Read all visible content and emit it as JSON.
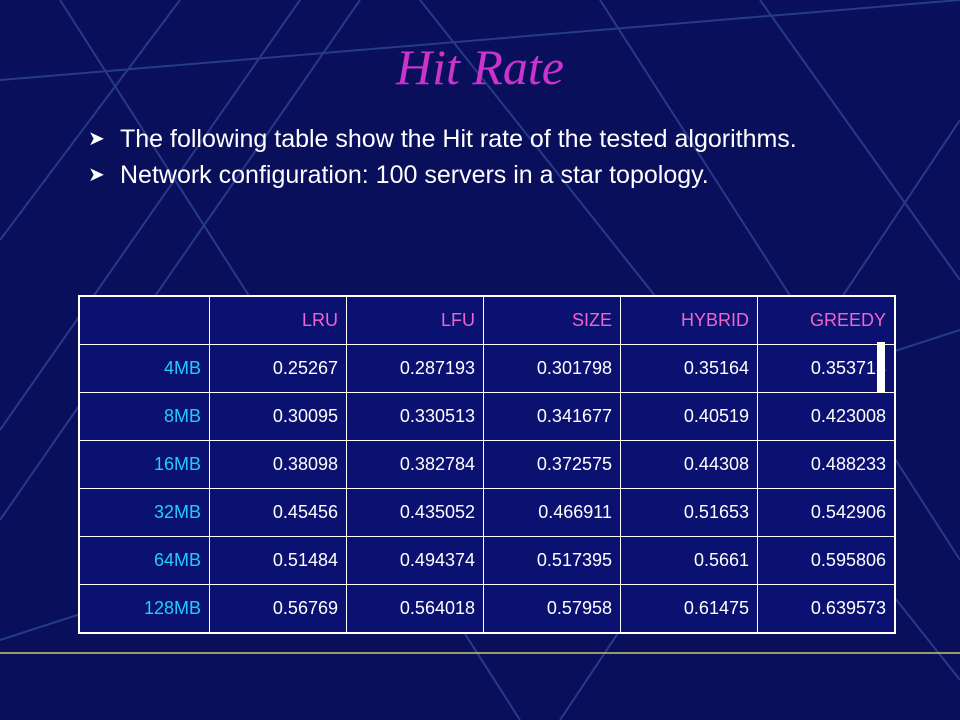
{
  "slide": {
    "title": "Hit Rate",
    "bullets": [
      "The following table show the Hit rate of the tested algorithms.",
      "Network configuration: 100  servers in a star topology."
    ]
  },
  "table": {
    "headers": [
      "",
      "LRU",
      "LFU",
      "SIZE",
      "HYBRID",
      "GREEDY"
    ],
    "rows": [
      {
        "label": "4MB",
        "values": [
          "0.25267",
          "0.287193",
          "0.301798",
          "0.35164",
          "0.353713"
        ]
      },
      {
        "label": "8MB",
        "values": [
          "0.30095",
          "0.330513",
          "0.341677",
          "0.40519",
          "0.423008"
        ]
      },
      {
        "label": "16MB",
        "values": [
          "0.38098",
          "0.382784",
          "0.372575",
          "0.44308",
          "0.488233"
        ]
      },
      {
        "label": "32MB",
        "values": [
          "0.45456",
          "0.435052",
          "0.466911",
          "0.51653",
          "0.542906"
        ]
      },
      {
        "label": "64MB",
        "values": [
          "0.51484",
          "0.494374",
          "0.517395",
          "0.5661",
          "0.595806"
        ]
      },
      {
        "label": "128MB",
        "values": [
          "0.56769",
          "0.564018",
          "0.57958",
          "0.61475",
          "0.639573"
        ]
      }
    ]
  },
  "colors": {
    "background": "#0a0f5c",
    "title": "#cc33cc",
    "header_text": "#ee66cc",
    "row_label_text": "#22ccff",
    "value_text": "#ffffff"
  },
  "icons": {
    "bullet": "arrow-bullet-icon"
  }
}
